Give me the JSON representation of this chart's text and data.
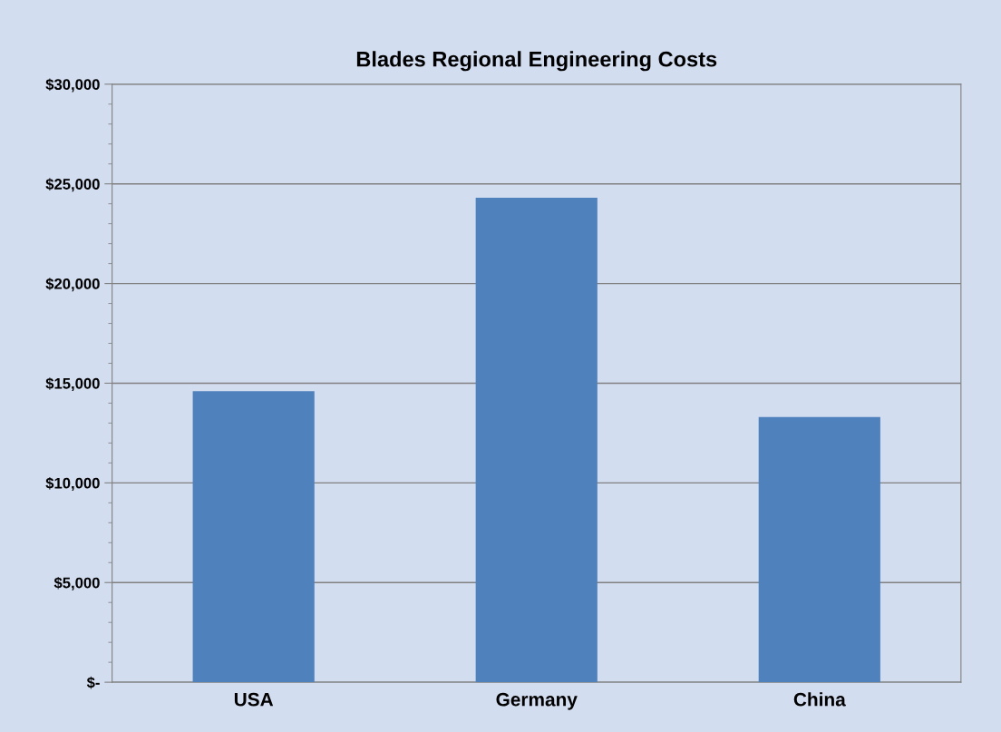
{
  "chart_data": {
    "type": "bar",
    "title": "Blades Regional Engineering Costs",
    "categories": [
      "USA",
      "Germany",
      "China"
    ],
    "values": [
      14600,
      24300,
      13300
    ],
    "color": "#4f81bd",
    "ylim": [
      0,
      30000
    ],
    "yticks": [
      {
        "value": 0,
        "label": "$-"
      },
      {
        "value": 5000,
        "label": "$5,000"
      },
      {
        "value": 10000,
        "label": "$10,000"
      },
      {
        "value": 15000,
        "label": "$15,000"
      },
      {
        "value": 20000,
        "label": "$20,000"
      },
      {
        "value": 25000,
        "label": "$25,000"
      },
      {
        "value": 30000,
        "label": "$30,000"
      }
    ],
    "grid": "y",
    "legend": false
  }
}
